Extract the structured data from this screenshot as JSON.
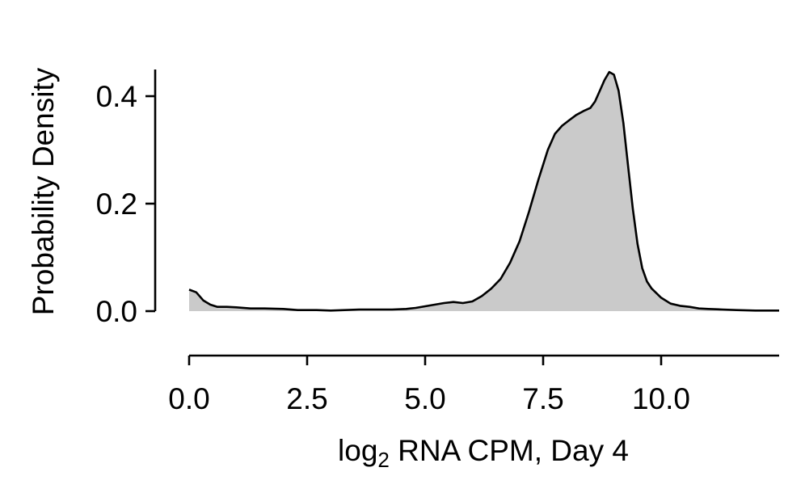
{
  "chart_data": {
    "type": "area",
    "title": "",
    "xlabel_main": "log",
    "xlabel_sub": "2",
    "xlabel_rest": " RNA CPM, Day 4",
    "ylabel": "Probability Density",
    "xlim": [
      0,
      12.5
    ],
    "ylim": [
      -0.08,
      0.45
    ],
    "x_ticks": [
      0,
      2.5,
      5,
      7.5,
      10
    ],
    "x_tick_labels": [
      "0.0",
      "2.5",
      "5.0",
      "7.5",
      "10.0"
    ],
    "y_ticks": [
      0,
      0.2,
      0.4
    ],
    "y_tick_labels": [
      "0.0",
      "0.2",
      "0.4"
    ],
    "fill_color": "#cacaca",
    "line_color": "#000000",
    "grid": false,
    "series": [
      {
        "x": [
          0.0,
          0.15,
          0.3,
          0.45,
          0.6,
          0.8,
          1.0,
          1.3,
          1.6,
          2.0,
          2.3,
          2.7,
          3.0,
          3.3,
          3.6,
          4.0,
          4.3,
          4.6,
          4.8,
          5.0,
          5.2,
          5.4,
          5.6,
          5.8,
          6.0,
          6.2,
          6.4,
          6.6,
          6.8,
          7.0,
          7.2,
          7.4,
          7.6,
          7.75,
          7.9,
          8.05,
          8.2,
          8.35,
          8.5,
          8.6,
          8.7,
          8.8,
          8.9,
          9.0,
          9.1,
          9.2,
          9.3,
          9.4,
          9.5,
          9.6,
          9.7,
          9.8,
          10.0,
          10.2,
          10.4,
          10.6,
          10.8,
          11.0,
          11.3,
          11.6,
          12.0,
          12.3,
          12.5
        ],
        "y": [
          0.04,
          0.035,
          0.02,
          0.012,
          0.008,
          0.008,
          0.007,
          0.005,
          0.005,
          0.004,
          0.002,
          0.002,
          0.001,
          0.002,
          0.003,
          0.003,
          0.003,
          0.004,
          0.006,
          0.009,
          0.012,
          0.015,
          0.017,
          0.015,
          0.018,
          0.028,
          0.042,
          0.06,
          0.09,
          0.13,
          0.185,
          0.245,
          0.3,
          0.33,
          0.345,
          0.355,
          0.365,
          0.372,
          0.378,
          0.39,
          0.41,
          0.43,
          0.445,
          0.44,
          0.41,
          0.35,
          0.27,
          0.19,
          0.125,
          0.08,
          0.055,
          0.042,
          0.025,
          0.014,
          0.01,
          0.008,
          0.005,
          0.004,
          0.003,
          0.002,
          0.001,
          0.001,
          0.001
        ]
      }
    ]
  }
}
